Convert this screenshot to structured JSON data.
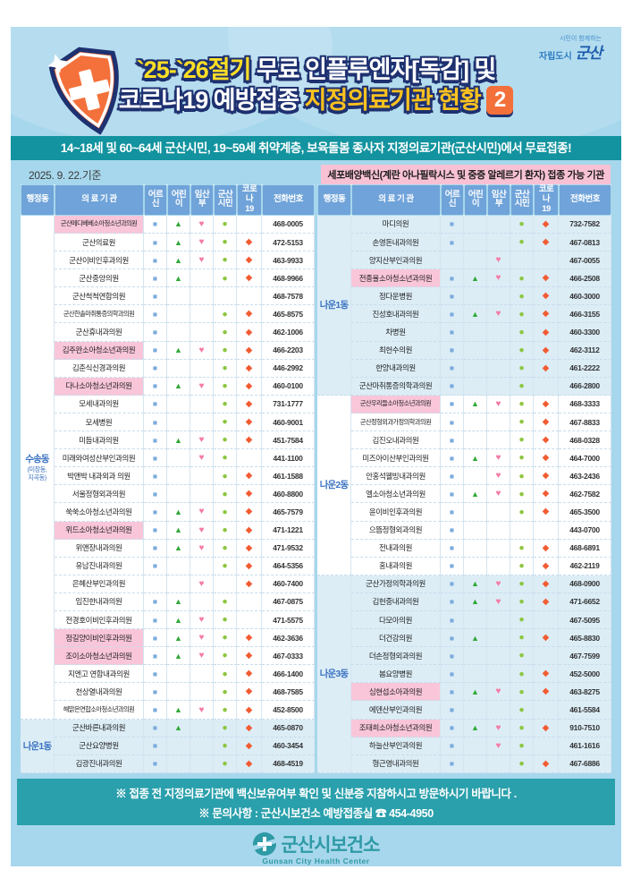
{
  "page": {
    "city_logo": {
      "tagline": "시민이 함께하는",
      "line2": "자립도시",
      "brand": "군산"
    },
    "title": {
      "line1_highlight": "`25-`26절기",
      "line1_rest": " 무료 인플루엔자[독감] 및",
      "line2_part1": "코로나19 예방접종 ",
      "line2_highlight": "지정의료기관 현황",
      "badge": "2"
    },
    "banner": "14~18세 및 60~64세 군산시민, 19~59세 취약계층, 보육돌봄 종사자  지정의료기관(군산시민)에서 무료접종!",
    "date_note": "2025. 9. 22.기준",
    "pink_note": "세포배양백신(계란 아나필락시스 및 중증 알레르기 환자) 접종 가능 기관",
    "footer": {
      "line1": "※ 접종 전 지정의료기관에 백신보유여부 확인 및 신분증 지참하시고 방문하시기 바랍니다 .",
      "line2": "※ 문의사항 : 군산시보건소 예방접종실 ☎ 454-4950"
    },
    "bottom_logo": {
      "kr": "군산시보건소",
      "en": "Gunsan City Health Center"
    }
  },
  "table": {
    "headers": [
      "행정동",
      "의 료 기 관",
      "어르신",
      "어린이",
      "임산부",
      "군산\n시민",
      "코로나\n19",
      "전화번호"
    ],
    "symbols": [
      {
        "name": "mark-senior",
        "char": "■",
        "color": "#7BABDC"
      },
      {
        "name": "mark-child",
        "char": "▲",
        "color": "#2FA836"
      },
      {
        "name": "mark-pregnant",
        "char": "♥",
        "color": "#F57AA6"
      },
      {
        "name": "mark-citizen",
        "char": "●",
        "color": "#8CC63F"
      },
      {
        "name": "mark-covid19",
        "char": "◆",
        "color": "#F25C33"
      }
    ],
    "row_format": [
      "name",
      "pink_highlight",
      "senior",
      "child",
      "pregnant",
      "citizen",
      "covid19",
      "phone"
    ],
    "left": {
      "groups": [
        {
          "district": "수송동",
          "district_sub": "(미장동,\n지곡동)",
          "shaded": false,
          "rows": [
            [
              "군산메디베베소아청소년과의원",
              1,
              1,
              1,
              1,
              1,
              0,
              "468-0005"
            ],
            [
              "군산의료원",
              0,
              1,
              1,
              1,
              1,
              1,
              "472-5153"
            ],
            [
              "군산이비인후과의원",
              0,
              1,
              1,
              1,
              1,
              1,
              "463-9933"
            ],
            [
              "군산중앙의원",
              0,
              1,
              1,
              0,
              1,
              1,
              "468-9966"
            ],
            [
              "군산척척연합의원",
              0,
              1,
              0,
              0,
              0,
              0,
              "468-7578"
            ],
            [
              "군산한솔마취통증의학과의원",
              0,
              1,
              0,
              0,
              1,
              1,
              "465-8575"
            ],
            [
              "군산휴내과의원",
              0,
              1,
              0,
              0,
              1,
              1,
              "462-1006"
            ],
            [
              "김주완소아청소년과의원",
              1,
              1,
              1,
              1,
              1,
              1,
              "466-2203"
            ],
            [
              "김춘식신경과의원",
              0,
              1,
              0,
              0,
              1,
              1,
              "446-2992"
            ],
            [
              "다나소아청소년과의원",
              1,
              1,
              1,
              1,
              1,
              1,
              "460-0100"
            ],
            [
              "모세내과의원",
              0,
              1,
              0,
              0,
              1,
              1,
              "731-1777"
            ],
            [
              "모세병원",
              0,
              1,
              0,
              0,
              1,
              1,
              "460-9001"
            ],
            [
              "미듬내과의원",
              0,
              1,
              1,
              1,
              1,
              1,
              "451-7584"
            ],
            [
              "미래와여성산부인과의원",
              0,
              1,
              0,
              1,
              1,
              0,
              "441-1100"
            ],
            [
              "박앤박 내과외과 의원",
              0,
              1,
              0,
              0,
              1,
              1,
              "461-1588"
            ],
            [
              "서울정형외과의원",
              0,
              1,
              0,
              0,
              1,
              1,
              "460-8800"
            ],
            [
              "쑥쑥소아청소년과의원",
              0,
              1,
              1,
              1,
              1,
              1,
              "465-7579"
            ],
            [
              "위드소아청소년과의원",
              1,
              1,
              1,
              1,
              1,
              1,
              "471-1221"
            ],
            [
              "위앤장내과의원",
              0,
              1,
              1,
              1,
              1,
              1,
              "471-9532"
            ],
            [
              "유남진내과의원",
              0,
              1,
              0,
              0,
              1,
              1,
              "464-5356"
            ],
            [
              "은혜산부인과의원",
              0,
              0,
              0,
              1,
              0,
              1,
              "460-7400"
            ],
            [
              "임진한내과의원",
              0,
              1,
              1,
              0,
              1,
              0,
              "467-0875"
            ],
            [
              "전경호이비인후과의원",
              0,
              1,
              1,
              1,
              1,
              0,
              "471-5575"
            ],
            [
              "정길양이비인후과의원",
              1,
              1,
              1,
              1,
              1,
              1,
              "462-3636"
            ],
            [
              "조이소아청소년과의원",
              1,
              1,
              1,
              1,
              1,
              1,
              "467-0333"
            ],
            [
              "지엔고 연합내과의원",
              0,
              1,
              0,
              0,
              1,
              1,
              "466-1400"
            ],
            [
              "천상열내과의원",
              0,
              1,
              0,
              0,
              1,
              1,
              "468-7585"
            ],
            [
              "해맑은연합소아청소년과의원",
              0,
              1,
              1,
              1,
              1,
              1,
              "452-8500"
            ]
          ]
        },
        {
          "district": "나운1동",
          "district_sub": "",
          "shaded": true,
          "rows": [
            [
              "군산바른내과의원",
              0,
              1,
              1,
              0,
              1,
              1,
              "465-0870"
            ],
            [
              "군산요양병원",
              0,
              1,
              0,
              0,
              1,
              1,
              "460-3454"
            ],
            [
              "김광진내과의원",
              0,
              1,
              0,
              0,
              1,
              1,
              "468-4519"
            ]
          ]
        }
      ]
    },
    "right": {
      "groups": [
        {
          "district": "나운1동",
          "district_sub": "",
          "shaded": true,
          "rows": [
            [
              "마디의원",
              0,
              1,
              0,
              0,
              1,
              1,
              "732-7582"
            ],
            [
              "손영돈내과의원",
              0,
              1,
              0,
              0,
              1,
              1,
              "467-0813"
            ],
            [
              "양지산부인과의원",
              0,
              0,
              0,
              1,
              0,
              0,
              "467-0055"
            ],
            [
              "전종율소아청소년과의원",
              1,
              1,
              1,
              1,
              1,
              1,
              "466-2508"
            ],
            [
              "정다운병원",
              0,
              1,
              0,
              0,
              1,
              1,
              "460-3000"
            ],
            [
              "진성호내과의원",
              0,
              1,
              1,
              1,
              1,
              1,
              "466-3155"
            ],
            [
              "차병원",
              0,
              1,
              0,
              0,
              1,
              1,
              "460-3300"
            ],
            [
              "최헌수의원",
              0,
              1,
              0,
              0,
              1,
              1,
              "462-3112"
            ],
            [
              "한양내과의원",
              0,
              1,
              0,
              0,
              1,
              1,
              "461-2222"
            ],
            [
              "군산마취통증의학과의원",
              0,
              1,
              0,
              0,
              1,
              0,
              "466-2800"
            ]
          ]
        },
        {
          "district": "나운2동",
          "district_sub": "",
          "shaded": false,
          "rows": [
            [
              "군산우리들소아청소년과의원",
              1,
              1,
              1,
              1,
              1,
              1,
              "468-3333"
            ],
            [
              "군산정형외과가정의학과의원",
              0,
              1,
              0,
              0,
              1,
              1,
              "467-8833"
            ],
            [
              "김진오내과의원",
              0,
              1,
              0,
              0,
              1,
              1,
              "468-0328"
            ],
            [
              "미즈아이산부인과의원",
              0,
              1,
              1,
              1,
              1,
              1,
              "464-7000"
            ],
            [
              "안홍석웰빙내과의원",
              0,
              1,
              0,
              1,
              1,
              1,
              "463-2436"
            ],
            [
              "엘소아청소년과의원",
              0,
              1,
              1,
              1,
              1,
              1,
              "462-7582"
            ],
            [
              "윤이비인후과의원",
              0,
              1,
              0,
              0,
              1,
              1,
              "465-3500"
            ],
            [
              "으뜸정형외과의원",
              0,
              1,
              0,
              0,
              0,
              0,
              "443-0700"
            ],
            [
              "전내과의원",
              0,
              1,
              0,
              0,
              1,
              1,
              "468-6891"
            ],
            [
              "홍내과의원",
              0,
              1,
              0,
              0,
              1,
              1,
              "462-2119"
            ]
          ]
        },
        {
          "district": "나운3동",
          "district_sub": "",
          "shaded": true,
          "rows": [
            [
              "군산가정의학과의원",
              0,
              1,
              1,
              1,
              1,
              1,
              "468-0900"
            ],
            [
              "김헌중내과의원",
              0,
              1,
              1,
              1,
              1,
              1,
              "471-6652"
            ],
            [
              "다모아의원",
              0,
              1,
              0,
              0,
              1,
              0,
              "467-5095"
            ],
            [
              "더건강의원",
              0,
              1,
              1,
              0,
              1,
              1,
              "465-8830"
            ],
            [
              "더손정형외과의원",
              0,
              1,
              0,
              0,
              1,
              0,
              "467-7599"
            ],
            [
              "봄요양병원",
              0,
              1,
              0,
              0,
              1,
              1,
              "452-5000"
            ],
            [
              "심현섭소아과의원",
              1,
              1,
              1,
              1,
              1,
              1,
              "463-8275"
            ],
            [
              "에덴산부인과의원",
              0,
              1,
              0,
              0,
              1,
              0,
              "461-5584"
            ],
            [
              "조태희소아청소년과의원",
              1,
              1,
              1,
              1,
              1,
              1,
              "910-7510"
            ],
            [
              "하늘산부인과의원",
              0,
              1,
              0,
              1,
              1,
              0,
              "461-1616"
            ],
            [
              "형근영내과의원",
              0,
              1,
              0,
              0,
              1,
              1,
              "467-6886"
            ]
          ]
        }
      ]
    }
  }
}
